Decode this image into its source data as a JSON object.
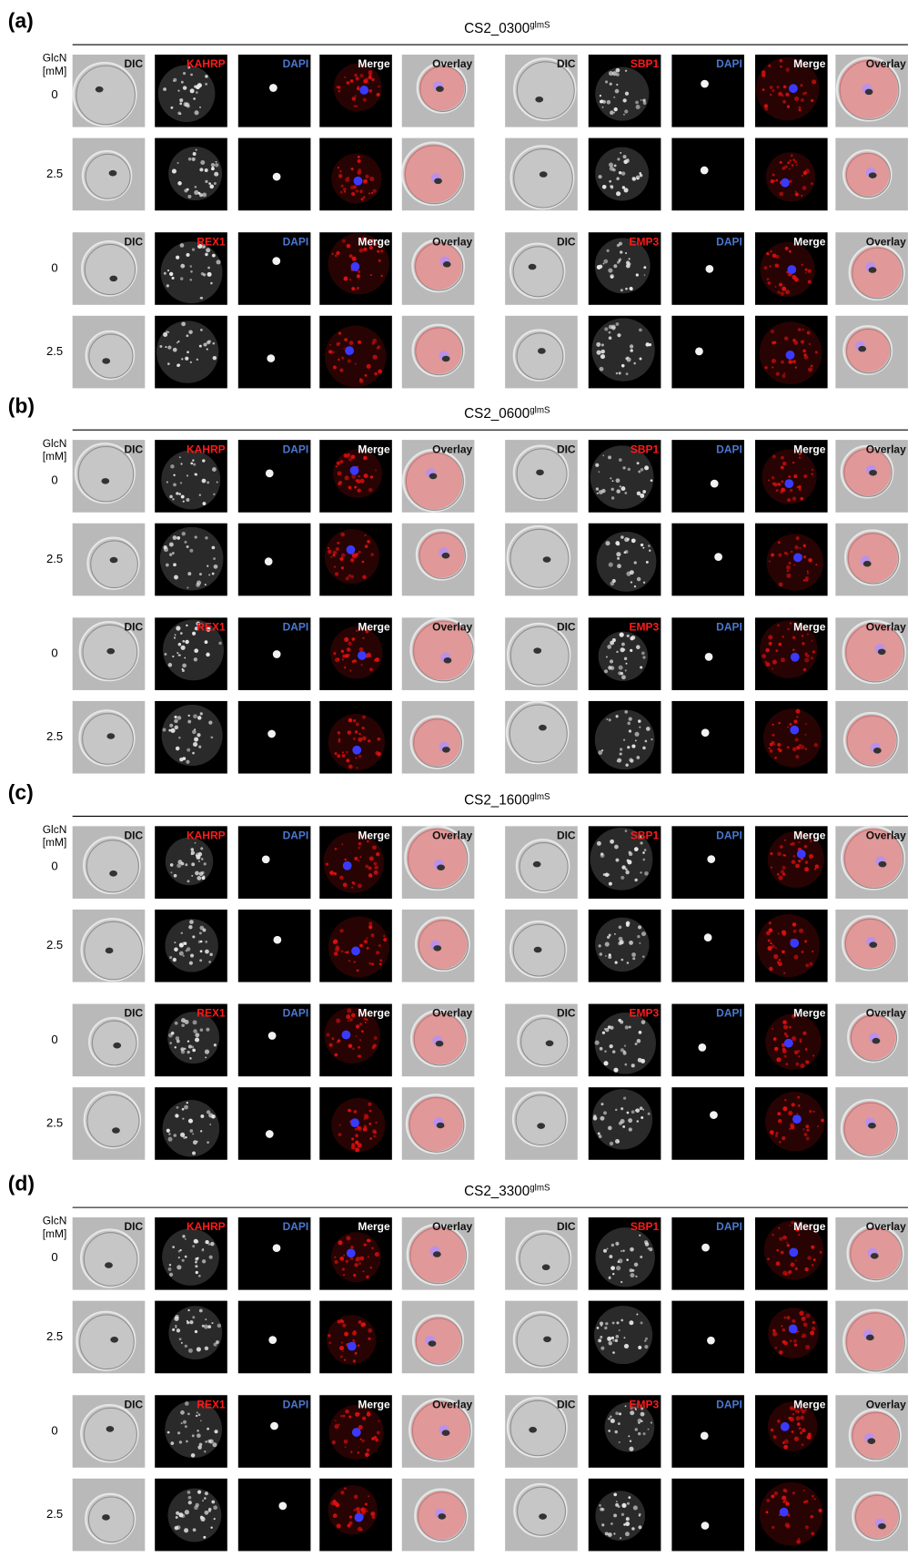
{
  "panels": [
    {
      "label": "(a)",
      "title": "CS2_0300",
      "title_sup": "glmS",
      "axis_label": "GlcN",
      "axis_unit": "[mM]",
      "groups": [
        {
          "concentrations": [
            "0",
            "2.5"
          ],
          "left": [
            "DIC",
            "KAHRP",
            "DAPI",
            "Merge",
            "Overlay"
          ],
          "right": [
            "DIC",
            "SBP1",
            "DAPI",
            "Merge",
            "Overlay"
          ]
        },
        {
          "concentrations": [
            "0",
            "2.5"
          ],
          "left": [
            "DIC",
            "REX1",
            "DAPI",
            "Merge",
            "Overlay"
          ],
          "right": [
            "DIC",
            "EMP3",
            "DAPI",
            "Merge",
            "Overlay"
          ]
        }
      ]
    },
    {
      "label": "(b)",
      "title": "CS2_0600",
      "title_sup": "glmS",
      "axis_label": "GlcN",
      "axis_unit": "[mM]",
      "groups": [
        {
          "concentrations": [
            "0",
            "2.5"
          ],
          "left": [
            "DIC",
            "KAHRP",
            "DAPI",
            "Merge",
            "Overlay"
          ],
          "right": [
            "DIC",
            "SBP1",
            "DAPI",
            "Merge",
            "Overlay"
          ]
        },
        {
          "concentrations": [
            "0",
            "2.5"
          ],
          "left": [
            "DIC",
            "REX1",
            "DAPI",
            "Merge",
            "Overlay"
          ],
          "right": [
            "DIC",
            "EMP3",
            "DAPI",
            "Merge",
            "Overlay"
          ]
        }
      ]
    },
    {
      "label": "(c)",
      "title": "CS2_1600",
      "title_sup": "glmS",
      "axis_label": "GlcN",
      "axis_unit": "[mM]",
      "groups": [
        {
          "concentrations": [
            "0",
            "2.5"
          ],
          "left": [
            "DIC",
            "KAHRP",
            "DAPI",
            "Merge",
            "Overlay"
          ],
          "right": [
            "DIC",
            "SBP1",
            "DAPI",
            "Merge",
            "Overlay"
          ]
        },
        {
          "concentrations": [
            "0",
            "2.5"
          ],
          "left": [
            "DIC",
            "REX1",
            "DAPI",
            "Merge",
            "Overlay"
          ],
          "right": [
            "DIC",
            "EMP3",
            "DAPI",
            "Merge",
            "Overlay"
          ]
        }
      ]
    },
    {
      "label": "(d)",
      "title": "CS2_3300",
      "title_sup": "glmS",
      "axis_label": "GlcN",
      "axis_unit": "[mM]",
      "groups": [
        {
          "concentrations": [
            "0",
            "2.5"
          ],
          "left": [
            "DIC",
            "KAHRP",
            "DAPI",
            "Merge",
            "Overlay"
          ],
          "right": [
            "DIC",
            "SBP1",
            "DAPI",
            "Merge",
            "Overlay"
          ]
        },
        {
          "concentrations": [
            "0",
            "2.5"
          ],
          "left": [
            "DIC",
            "REX1",
            "DAPI",
            "Merge",
            "Overlay"
          ],
          "right": [
            "DIC",
            "EMP3",
            "DAPI",
            "Merge",
            "Overlay"
          ]
        }
      ]
    }
  ]
}
